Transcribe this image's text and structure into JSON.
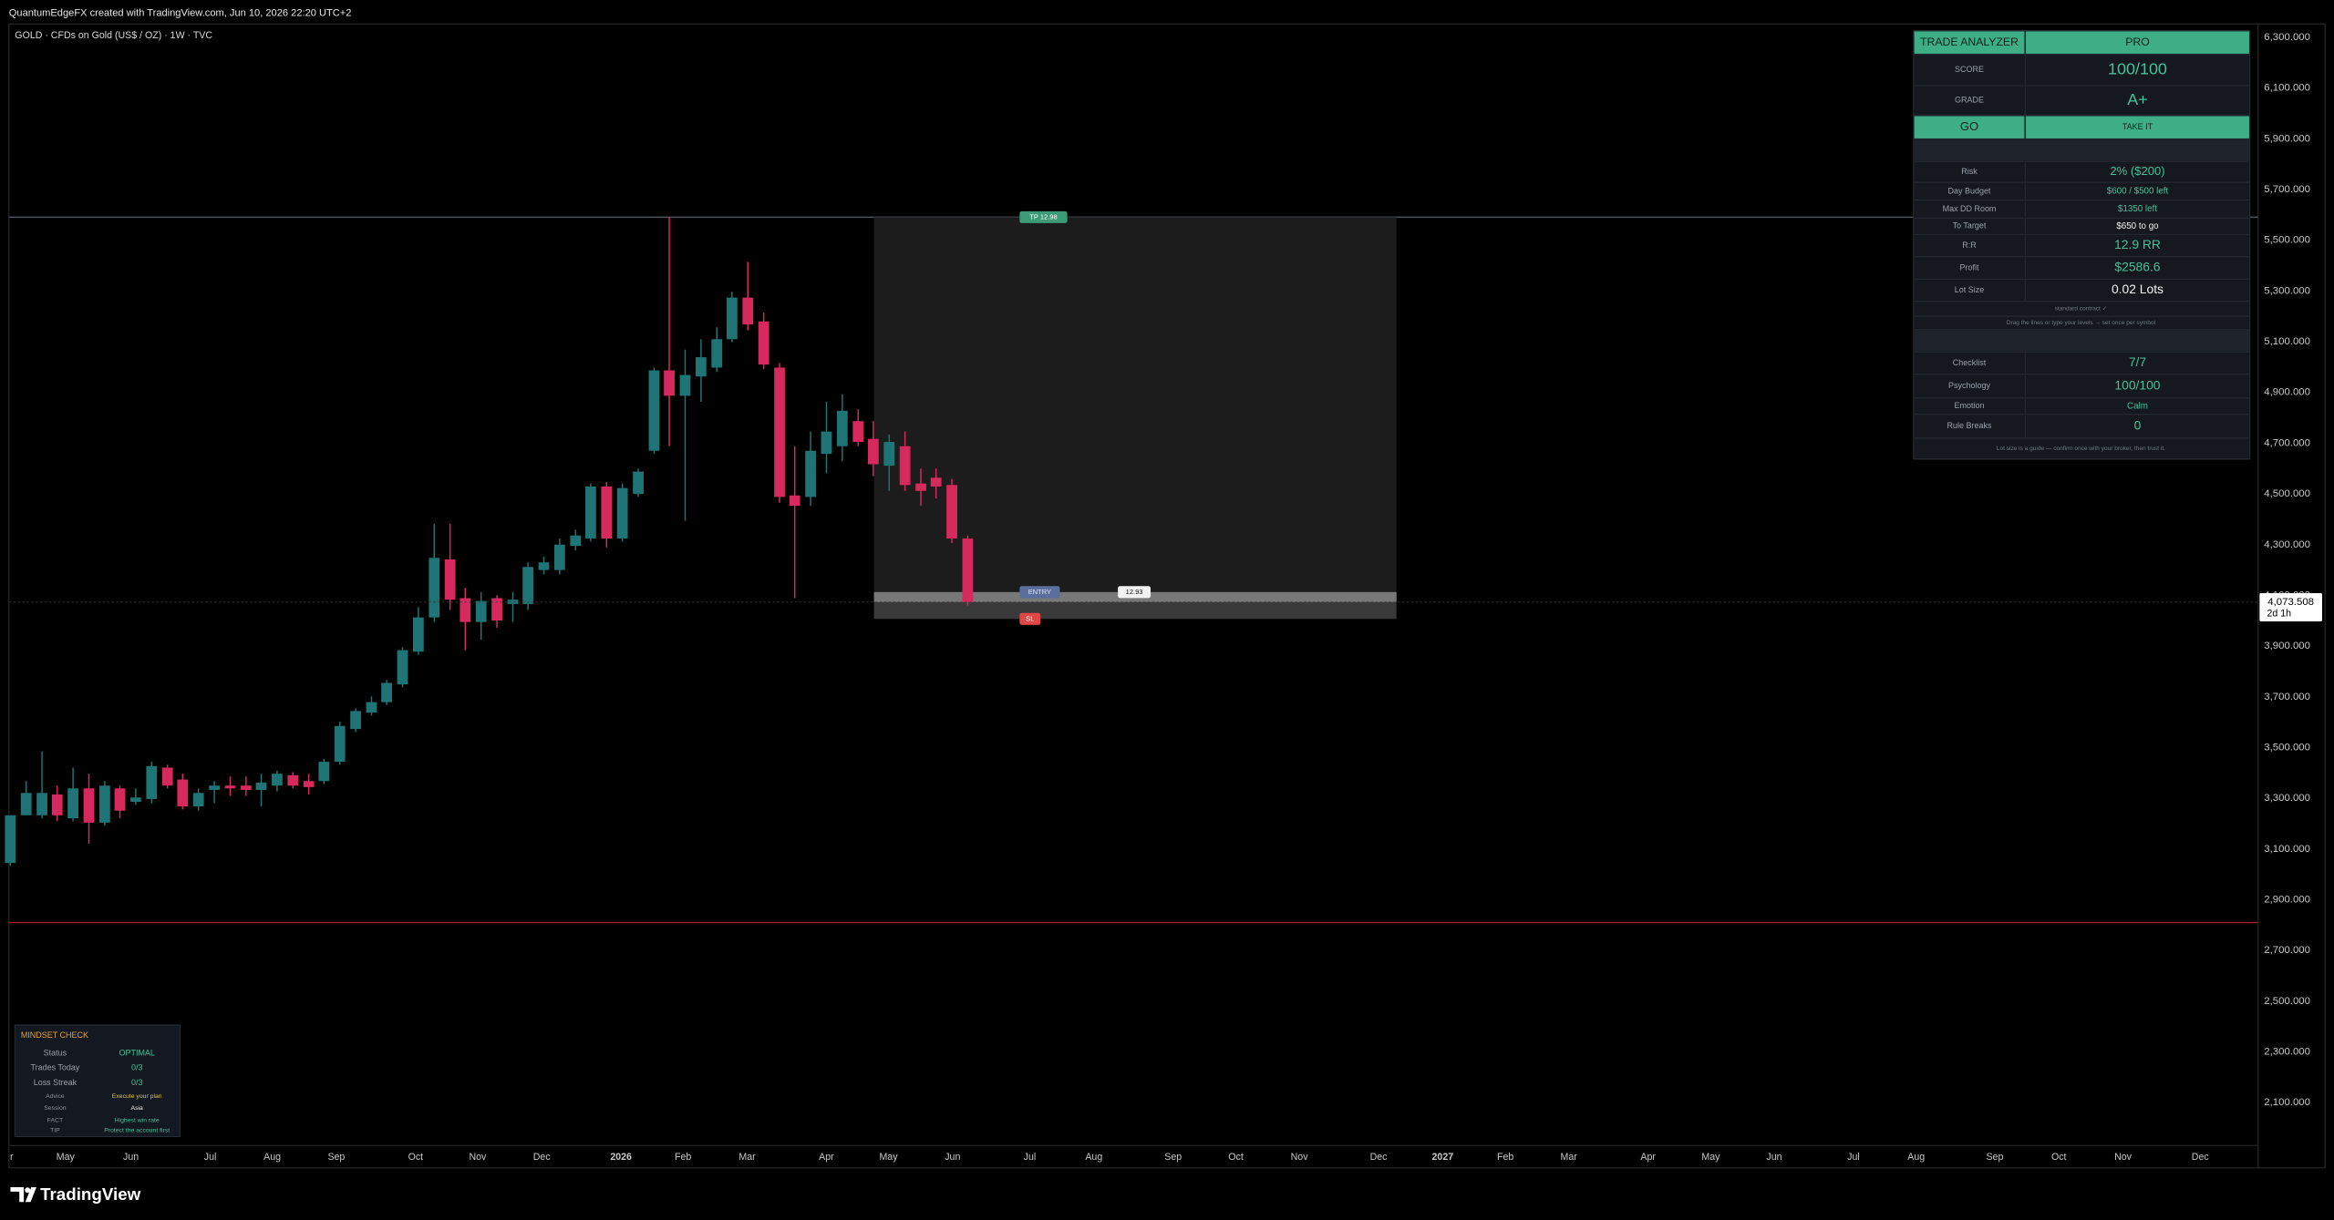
{
  "header": "QuantumEdgeFX created with TradingView.com, Jun 10, 2026 22:20 UTC+2",
  "brand": "TradingView",
  "chart_data": {
    "type": "candlestick",
    "symbol": "GOLD · CFDs on Gold (US$ / OZ) · 1W · TVC",
    "up_color": "#1f7476",
    "down_color": "#d62a5e",
    "grid": false,
    "xlim": [
      0.18,
      32.81
    ],
    "xticks": [
      {
        "value": 0.22,
        "label": "r"
      },
      {
        "value": 1.0,
        "label": "May"
      },
      {
        "value": 1.95,
        "label": "Jun"
      },
      {
        "value": 3.1,
        "label": "Jul"
      },
      {
        "value": 4.0,
        "label": "Aug"
      },
      {
        "value": 4.93,
        "label": "Sep"
      },
      {
        "value": 6.08,
        "label": "Oct"
      },
      {
        "value": 6.98,
        "label": "Nov"
      },
      {
        "value": 7.91,
        "label": "Dec"
      },
      {
        "value": 9.06,
        "label": "2026"
      },
      {
        "value": 9.96,
        "label": "Feb"
      },
      {
        "value": 10.89,
        "label": "Mar"
      },
      {
        "value": 12.04,
        "label": "Apr"
      },
      {
        "value": 12.94,
        "label": "May"
      },
      {
        "value": 13.87,
        "label": "Jun"
      },
      {
        "value": 14.99,
        "label": "Jul"
      },
      {
        "value": 15.92,
        "label": "Aug"
      },
      {
        "value": 17.07,
        "label": "Sep"
      },
      {
        "value": 17.98,
        "label": "Oct"
      },
      {
        "value": 18.9,
        "label": "Nov"
      },
      {
        "value": 20.05,
        "label": "Dec"
      },
      {
        "value": 20.98,
        "label": "2027"
      },
      {
        "value": 21.89,
        "label": "Feb"
      },
      {
        "value": 22.81,
        "label": "Mar"
      },
      {
        "value": 23.96,
        "label": "Apr"
      },
      {
        "value": 24.87,
        "label": "May"
      },
      {
        "value": 25.79,
        "label": "Jun"
      },
      {
        "value": 26.94,
        "label": "Jul"
      },
      {
        "value": 27.85,
        "label": "Aug"
      },
      {
        "value": 28.99,
        "label": "Sep"
      },
      {
        "value": 29.92,
        "label": "Oct"
      },
      {
        "value": 30.85,
        "label": "Nov"
      },
      {
        "value": 31.97,
        "label": "Dec"
      }
    ],
    "ylim": [
      1931,
      6353
    ],
    "yticks": [
      {
        "value": 2100,
        "label": "2,100.000"
      },
      {
        "value": 2300,
        "label": "2,300.000"
      },
      {
        "value": 2500,
        "label": "2,500.000"
      },
      {
        "value": 2700,
        "label": "2,700.000"
      },
      {
        "value": 2900,
        "label": "2,900.000"
      },
      {
        "value": 3100,
        "label": "3,100.000"
      },
      {
        "value": 3300,
        "label": "3,300.000"
      },
      {
        "value": 3500,
        "label": "3,500.000"
      },
      {
        "value": 3700,
        "label": "3,700.000"
      },
      {
        "value": 3900,
        "label": "3,900.000"
      },
      {
        "value": 4100,
        "label": "4,100.000"
      },
      {
        "value": 4300,
        "label": "4,300.000"
      },
      {
        "value": 4500,
        "label": "4,500.000"
      },
      {
        "value": 4700,
        "label": "4,700.000"
      },
      {
        "value": 4900,
        "label": "4,900.000"
      },
      {
        "value": 5100,
        "label": "5,100.000"
      },
      {
        "value": 5300,
        "label": "5,300.000"
      },
      {
        "value": 5500,
        "label": "5,500.000"
      },
      {
        "value": 5700,
        "label": "5,700.000"
      },
      {
        "value": 5900,
        "label": "5,900.000"
      },
      {
        "value": 6100,
        "label": "6,100.000"
      },
      {
        "value": 6300,
        "label": "6,300.000"
      }
    ],
    "x": [
      0.2,
      0.43,
      0.66,
      0.88,
      1.11,
      1.34,
      1.57,
      1.79,
      2.02,
      2.25,
      2.48,
      2.7,
      2.93,
      3.16,
      3.39,
      3.62,
      3.84,
      4.07,
      4.3,
      4.53,
      4.75,
      4.98,
      5.21,
      5.44,
      5.66,
      5.89,
      6.12,
      6.35,
      6.58,
      6.8,
      7.03,
      7.26,
      7.49,
      7.71,
      7.94,
      8.17,
      8.4,
      8.62,
      8.85,
      9.08,
      9.31,
      9.54,
      9.76,
      9.99,
      10.22,
      10.45,
      10.67,
      10.9,
      11.13,
      11.36,
      11.58,
      11.81,
      12.04,
      12.27,
      12.5,
      12.72,
      12.95,
      13.18,
      13.41,
      13.63,
      13.86,
      14.09
    ],
    "open": [
      3045,
      3233,
      3233,
      3315,
      3221,
      3339,
      3204,
      3339,
      3286,
      3297,
      3421,
      3374,
      3268,
      3333,
      3350,
      3350,
      3333,
      3350,
      3391,
      3368,
      3368,
      3444,
      3573,
      3638,
      3679,
      3749,
      3878,
      4013,
      4242,
      4089,
      3995,
      4089,
      4066,
      4066,
      4200,
      4200,
      4295,
      4324,
      4529,
      4324,
      4500,
      4670,
      4987,
      4887,
      4963,
      4998,
      5110,
      5274,
      5180,
      4998,
      4494,
      4488,
      4658,
      4688,
      4787,
      4717,
      4611,
      4688,
      4541,
      4564,
      4535,
      4324
    ],
    "high": [
      3233,
      3368,
      3485,
      3350,
      3421,
      3397,
      3368,
      3350,
      3339,
      3444,
      3432,
      3397,
      3339,
      3368,
      3386,
      3386,
      3397,
      3409,
      3403,
      3397,
      3456,
      3602,
      3655,
      3702,
      3767,
      3896,
      4054,
      4382,
      4382,
      4130,
      4113,
      4101,
      4113,
      4230,
      4253,
      4324,
      4359,
      4541,
      4547,
      4541,
      4600,
      4998,
      5591,
      5069,
      5110,
      5157,
      5297,
      5415,
      5215,
      5016,
      4688,
      4746,
      4863,
      4893,
      4834,
      4787,
      4734,
      4746,
      4600,
      4600,
      4559,
      4336
    ],
    "low": [
      3034,
      3233,
      3221,
      3210,
      3210,
      3121,
      3192,
      3221,
      3274,
      3280,
      3339,
      3256,
      3251,
      3280,
      3309,
      3309,
      3268,
      3327,
      3339,
      3315,
      3356,
      3432,
      3561,
      3626,
      3667,
      3737,
      3866,
      3995,
      4042,
      3884,
      3925,
      3972,
      3995,
      4042,
      4183,
      4183,
      4277,
      4312,
      4289,
      4312,
      4488,
      4658,
      4688,
      4394,
      4863,
      4981,
      5098,
      5145,
      4992,
      4465,
      4089,
      4453,
      4582,
      4629,
      4688,
      4570,
      4512,
      4512,
      4453,
      4482,
      4306,
      4060
    ],
    "close": [
      3233,
      3321,
      3321,
      3233,
      3339,
      3204,
      3350,
      3251,
      3303,
      3427,
      3350,
      3268,
      3321,
      3350,
      3339,
      3333,
      3362,
      3397,
      3350,
      3344,
      3444,
      3585,
      3644,
      3679,
      3755,
      3884,
      4013,
      4248,
      4083,
      3995,
      4078,
      4001,
      4083,
      4212,
      4230,
      4300,
      4336,
      4529,
      4324,
      4523,
      4588,
      4987,
      4887,
      4969,
      5039,
      5110,
      5274,
      5168,
      5010,
      4488,
      4453,
      4670,
      4746,
      4828,
      4705,
      4617,
      4705,
      4535,
      4512,
      4529,
      4324,
      4073.508
    ],
    "last_price": {
      "value": 4073.508,
      "label": "4,073.508"
    },
    "countdown": "2d 1h",
    "hlines": [
      {
        "value": 5591,
        "color": "#4d545c"
      },
      {
        "value": 2810,
        "color": "#a51d2d"
      }
    ],
    "position": {
      "x_start": 12.73,
      "x_end": 20.31,
      "tp": 5591,
      "entry": 4113,
      "sl": 4007,
      "tp_label": "TP 12.98",
      "entry_label": "ENTRY",
      "rr_label": "12.93",
      "sl_label": "SL"
    }
  },
  "trade_analyzer": {
    "title": "TRADE ANALYZER",
    "tier": "PRO",
    "score": {
      "label": "SCORE",
      "value": "100/100"
    },
    "grade": {
      "label": "GRADE",
      "value": "A+"
    },
    "signal": {
      "label": "GO",
      "value": "TAKE IT"
    },
    "risk_rows": [
      {
        "label": "Risk",
        "value": "2% ($200)"
      },
      {
        "label": "Day Budget",
        "value": "$600 / $500 left"
      },
      {
        "label": "Max DD Room",
        "value": "$1350 left"
      },
      {
        "label": "To Target",
        "value": "$650 to go"
      },
      {
        "label": "R:R",
        "value": "12.9 RR"
      },
      {
        "label": "Profit",
        "value": "$2586.6"
      },
      {
        "label": "Lot Size",
        "value": "0.02 Lots"
      }
    ],
    "notes": [
      "standard contract ✓",
      "Drag the lines or type your levels → set once per symbol"
    ],
    "discipline_rows": [
      {
        "label": "Checklist",
        "value": "7/7"
      },
      {
        "label": "Psychology",
        "value": "100/100"
      },
      {
        "label": "Emotion",
        "value": "Calm"
      },
      {
        "label": "Rule Breaks",
        "value": "0"
      }
    ],
    "footer": "Lot size is a guide — confirm once with your broker, then trust it."
  },
  "mindset": {
    "title": "MINDSET CHECK",
    "rows": [
      {
        "label": "Status",
        "value": "OPTIMAL"
      },
      {
        "label": "Trades Today",
        "value": "0/3"
      },
      {
        "label": "Loss Streak",
        "value": "0/3"
      }
    ],
    "tips": [
      {
        "label": "Advice",
        "value": "Execute your plan"
      },
      {
        "label": "Session",
        "value": "Asia"
      },
      {
        "label": "FACT",
        "value": "Highest win rate"
      },
      {
        "label": "TIP",
        "value": "Protect the account first"
      }
    ]
  }
}
